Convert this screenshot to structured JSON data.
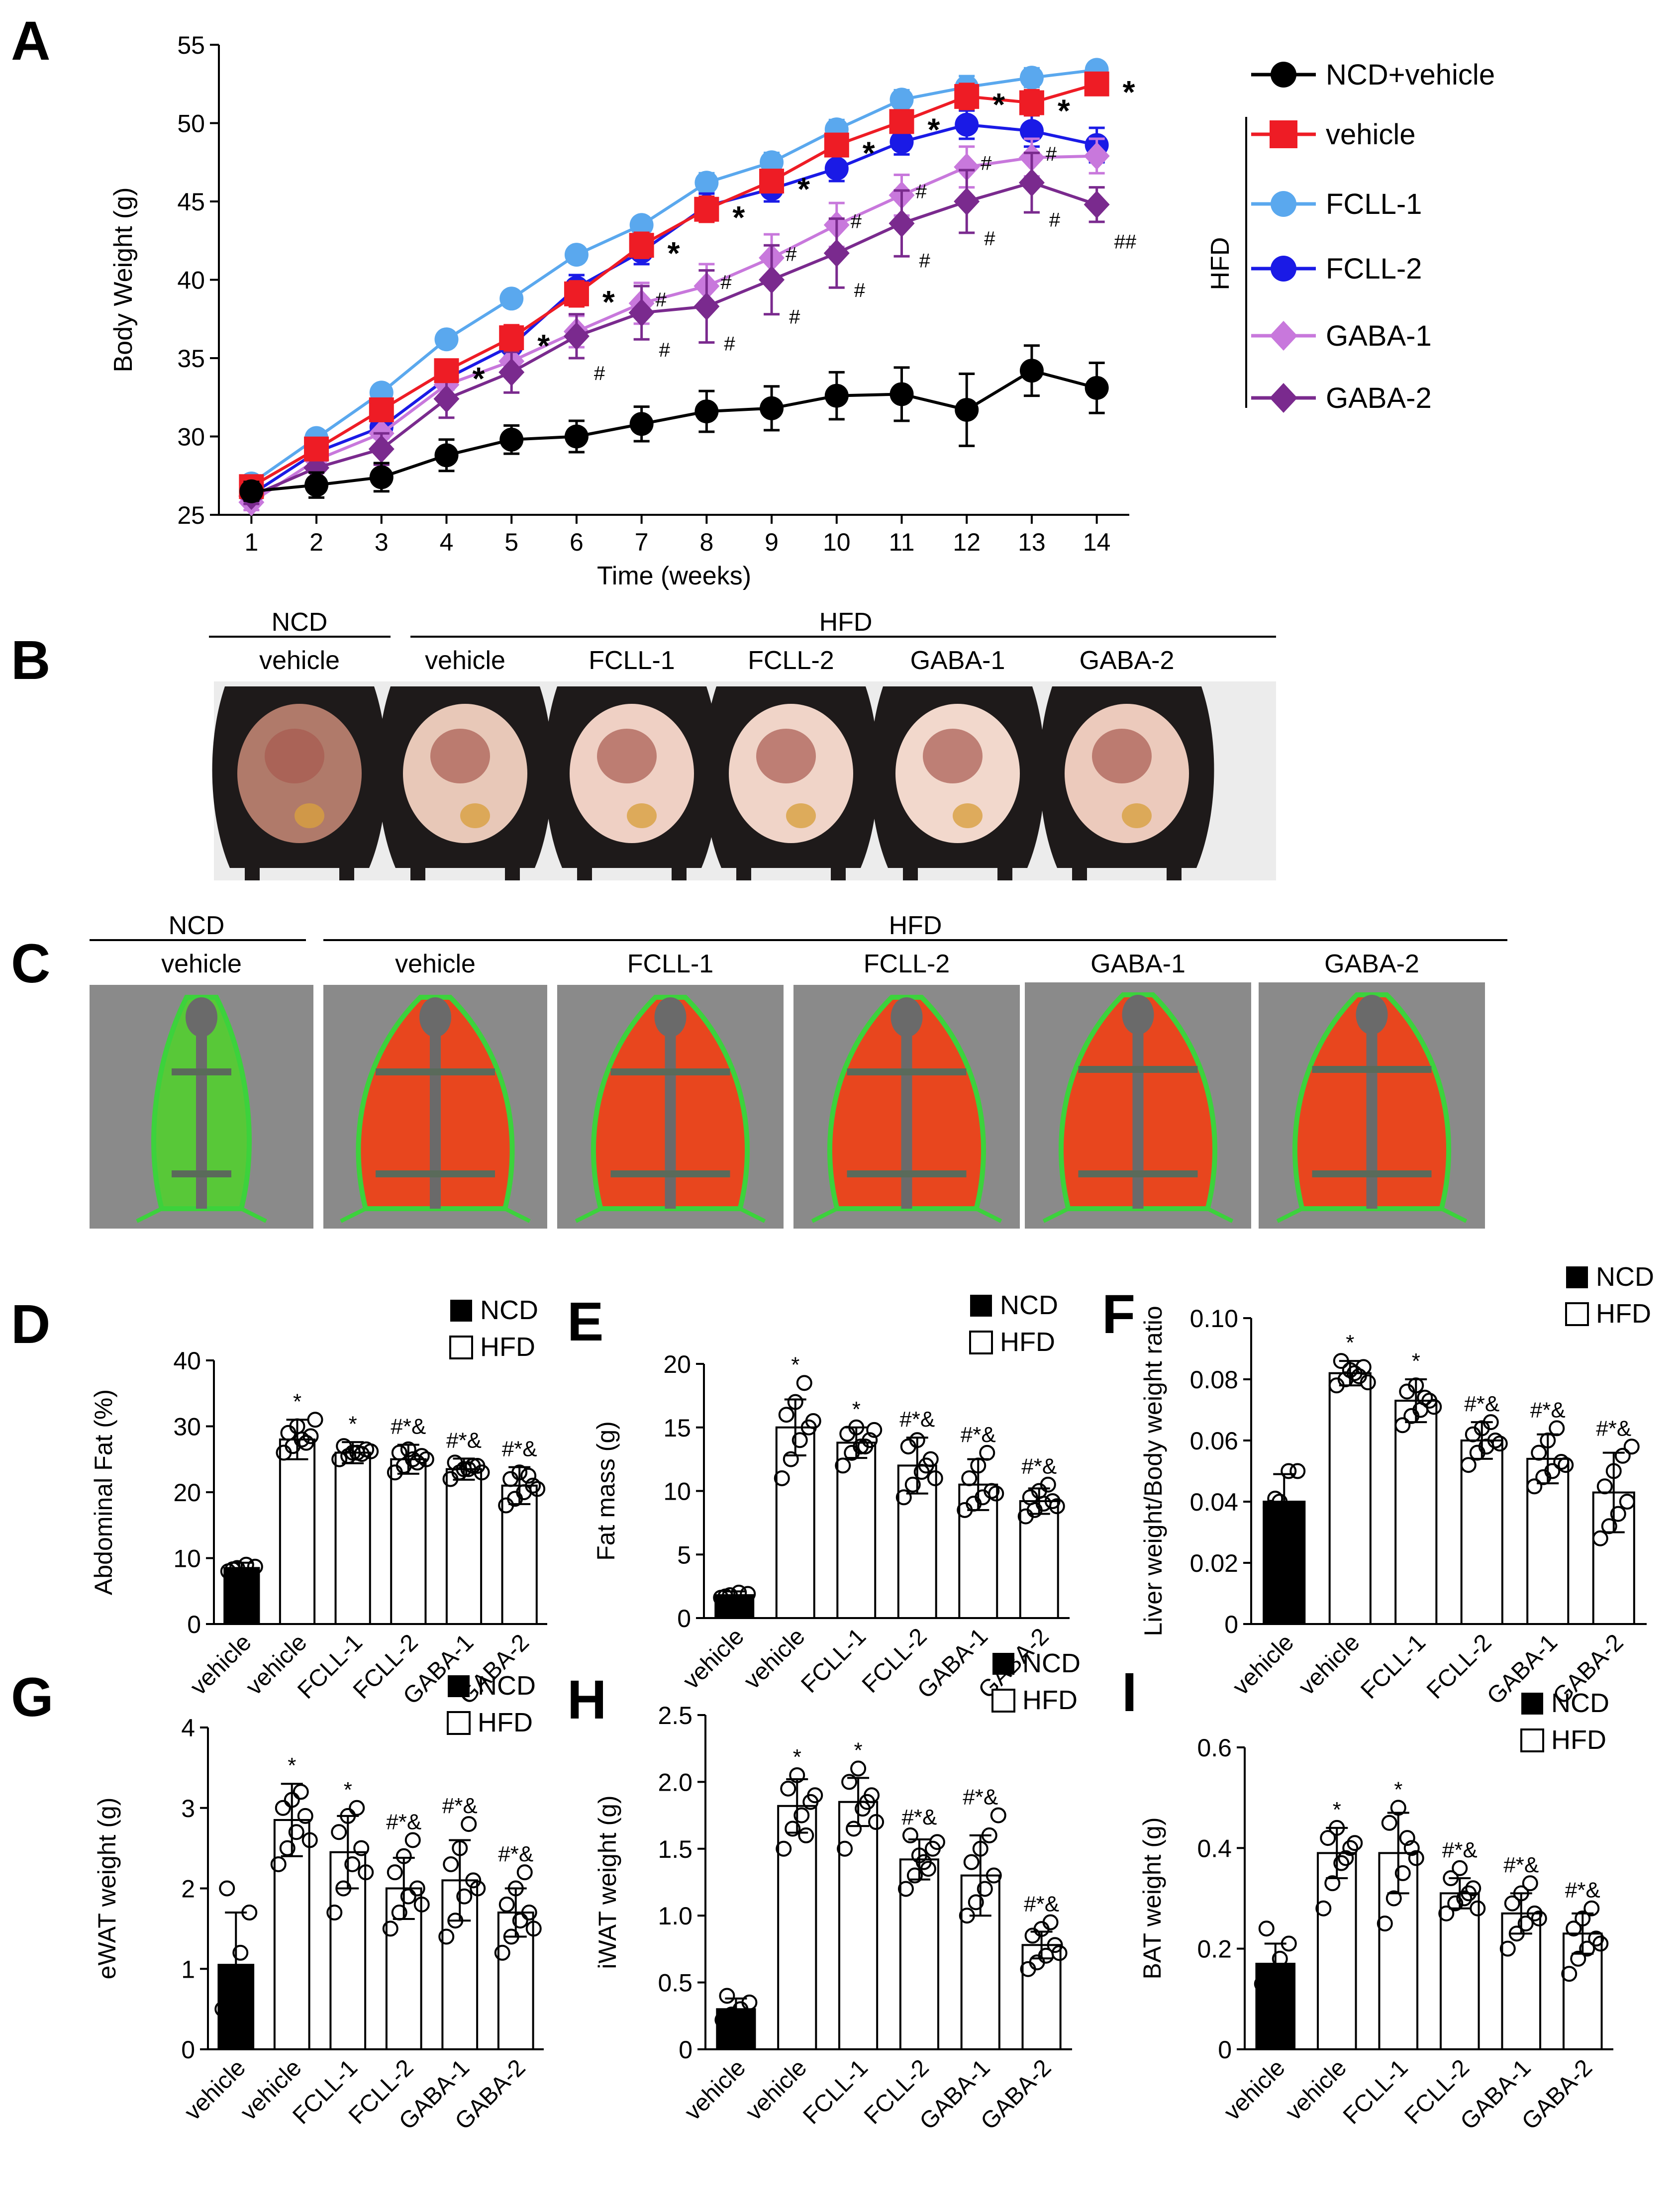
{
  "panel_letters": {
    "A": "A",
    "B": "B",
    "C": "C",
    "D": "D",
    "E": "E",
    "F": "F",
    "G": "G",
    "H": "H",
    "I": "I"
  },
  "colors": {
    "ncd": "#000000",
    "vehicle": "#ee1c25",
    "fcll1": "#5aa8ee",
    "fcll2": "#1a1ae6",
    "gaba1": "#c878dc",
    "gaba2": "#7a2a8e",
    "fat_red": "#e8461e",
    "lean_green": "#3cd23c",
    "scan_bg": "#8a8a8a"
  },
  "panel_B": {
    "group_ncd": "NCD",
    "group_hfd": "HFD",
    "labels": [
      "vehicle",
      "vehicle",
      "FCLL-1",
      "FCLL-2",
      "GABA-1",
      "GABA-2"
    ]
  },
  "panel_C": {
    "group_ncd": "NCD",
    "group_hfd": "HFD",
    "labels": [
      "vehicle",
      "vehicle",
      "FCLL-1",
      "FCLL-2",
      "GABA-1",
      "GABA-2"
    ]
  },
  "chart_data": [
    {
      "id": "A",
      "type": "line",
      "title": "",
      "xlabel": "Time (weeks)",
      "ylabel": "Body Weight (g)",
      "x": [
        1,
        2,
        3,
        4,
        5,
        6,
        7,
        8,
        9,
        10,
        11,
        12,
        13,
        14
      ],
      "xlim": [
        0.5,
        14.5
      ],
      "ylim": [
        25,
        55
      ],
      "yticks": [
        25,
        30,
        35,
        40,
        45,
        50,
        55
      ],
      "legend": {
        "placement": "right",
        "group_label": "HFD",
        "entries": [
          "NCD+vehicle",
          "vehicle",
          "FCLL-1",
          "FCLL-2",
          "GABA-1",
          "GABA-2"
        ]
      },
      "series": [
        {
          "name": "NCD+vehicle",
          "color": "#000000",
          "marker": "circle",
          "values": [
            26.5,
            26.9,
            27.4,
            28.8,
            29.8,
            30.0,
            30.8,
            31.6,
            31.8,
            32.6,
            32.7,
            31.7,
            34.2,
            33.1
          ],
          "err": [
            0.6,
            0.8,
            0.9,
            1.0,
            0.9,
            1.0,
            1.1,
            1.3,
            1.4,
            1.5,
            1.7,
            2.3,
            1.6,
            1.6
          ]
        },
        {
          "name": "vehicle",
          "color": "#ee1c25",
          "marker": "square",
          "values": [
            26.8,
            29.2,
            31.7,
            34.2,
            36.3,
            39.1,
            42.2,
            44.5,
            46.3,
            48.6,
            50.1,
            51.7,
            51.3,
            52.5
          ],
          "err": [
            0.4,
            0.6,
            0.7,
            0.7,
            0.8,
            0.8,
            0.8,
            0.8,
            0.7,
            0.7,
            0.7,
            0.8,
            0.8,
            0.6
          ]
        },
        {
          "name": "FCLL-1",
          "color": "#5aa8ee",
          "marker": "circle",
          "values": [
            27.0,
            29.9,
            32.8,
            36.2,
            38.8,
            41.6,
            43.5,
            46.2,
            47.5,
            49.6,
            51.5,
            52.3,
            52.9,
            53.4
          ],
          "err": [
            0.3,
            0.5,
            0.5,
            0.5,
            0.5,
            0.5,
            0.5,
            0.6,
            0.6,
            0.6,
            0.6,
            0.7,
            0.6,
            0.5
          ]
        },
        {
          "name": "FCLL-2",
          "color": "#1a1ae6",
          "marker": "circle",
          "values": [
            26.3,
            29.0,
            30.6,
            33.7,
            35.8,
            39.5,
            41.8,
            44.7,
            45.8,
            47.1,
            48.8,
            49.9,
            49.5,
            48.6
          ],
          "err": [
            0.4,
            0.6,
            0.7,
            0.7,
            0.7,
            0.8,
            0.8,
            0.8,
            0.8,
            0.8,
            0.8,
            0.9,
            1.0,
            1.1
          ]
        },
        {
          "name": "GABA-1",
          "color": "#c878dc",
          "marker": "diamond",
          "values": [
            25.8,
            28.5,
            30.2,
            33.3,
            34.8,
            36.7,
            38.5,
            39.6,
            41.4,
            43.5,
            45.4,
            47.2,
            47.8,
            47.9
          ],
          "err": [
            0.5,
            0.7,
            0.8,
            0.8,
            0.9,
            1.0,
            1.3,
            1.4,
            1.5,
            1.4,
            1.3,
            1.3,
            1.2,
            1.1
          ]
        },
        {
          "name": "GABA-2",
          "color": "#7a2a8e",
          "marker": "diamond",
          "values": [
            26.2,
            28.0,
            29.2,
            32.4,
            34.1,
            36.4,
            37.9,
            38.3,
            40.0,
            41.7,
            43.6,
            45.0,
            46.2,
            44.8
          ],
          "err": [
            0.5,
            0.8,
            1.0,
            1.2,
            1.3,
            1.4,
            1.7,
            2.3,
            2.2,
            2.2,
            2.1,
            2.0,
            1.9,
            1.1
          ]
        }
      ],
      "annotations": {
        "stars": "*",
        "hashes": "#",
        "double_hash": "##"
      }
    },
    {
      "id": "D",
      "type": "bar",
      "ylabel": "Abdominal Fat (%)",
      "ylim": [
        0,
        40
      ],
      "yticks": [
        0,
        10,
        20,
        30,
        40
      ],
      "categories": [
        "vehicle",
        "vehicle",
        "FCLL-1",
        "FCLL-2",
        "GABA-1",
        "GABA-2"
      ],
      "groups": [
        "NCD",
        "HFD",
        "HFD",
        "HFD",
        "HFD",
        "HFD"
      ],
      "legend": [
        "NCD",
        "HFD"
      ],
      "values": [
        8.5,
        28.0,
        26.0,
        25.0,
        23.5,
        21.0
      ],
      "err": [
        0.8,
        3.0,
        1.6,
        2.2,
        1.6,
        2.8
      ],
      "sig": [
        "",
        "*",
        "*",
        "#*&",
        "#*&",
        "#*&"
      ],
      "points": [
        [
          8.0,
          8.5,
          9.0,
          8.7,
          8.3
        ],
        [
          26,
          27,
          28,
          28.5,
          29,
          30,
          27.5,
          31
        ],
        [
          25,
          25.5,
          26,
          26.5,
          27,
          26,
          25.8,
          26.2
        ],
        [
          23,
          24,
          25,
          25.5,
          26,
          26.5,
          24.5,
          25
        ],
        [
          22,
          23,
          23.5,
          24,
          24.5,
          23.5,
          24,
          23
        ],
        [
          18,
          19,
          20,
          21,
          22,
          23,
          22.5,
          20.5
        ]
      ]
    },
    {
      "id": "E",
      "type": "bar",
      "ylabel": "Fat mass (g)",
      "ylim": [
        0,
        20
      ],
      "yticks": [
        0,
        5,
        10,
        15,
        20
      ],
      "categories": [
        "vehicle",
        "vehicle",
        "FCLL-1",
        "FCLL-2",
        "GABA-1",
        "GABA-2"
      ],
      "groups": [
        "NCD",
        "HFD",
        "HFD",
        "HFD",
        "HFD",
        "HFD"
      ],
      "legend": [
        "NCD",
        "HFD"
      ],
      "values": [
        1.8,
        15.0,
        13.8,
        12.0,
        10.5,
        9.2
      ],
      "err": [
        0.3,
        2.2,
        1.2,
        2.2,
        2.0,
        1.0
      ],
      "sig": [
        "",
        "*",
        "*",
        "#*&",
        "#*&",
        "#*&"
      ],
      "points": [
        [
          1.6,
          1.8,
          2.0,
          1.9,
          1.7
        ],
        [
          11,
          12.5,
          14,
          15,
          16,
          17,
          18.5,
          15.5
        ],
        [
          12,
          13,
          13.5,
          14,
          14.5,
          15,
          13.5,
          14.8
        ],
        [
          9.5,
          10.5,
          11.5,
          12.5,
          13.5,
          14,
          12,
          11
        ],
        [
          8.5,
          9,
          9.5,
          10,
          11,
          12,
          13,
          9.8
        ],
        [
          8,
          8.5,
          9,
          9.2,
          9.5,
          10,
          10.5,
          8.8
        ]
      ]
    },
    {
      "id": "F",
      "type": "bar",
      "ylabel": "Liver weight/Body weight ratio",
      "ylim": [
        0,
        0.1
      ],
      "yticks": [
        0,
        0.02,
        0.04,
        0.06,
        0.08,
        0.1
      ],
      "categories": [
        "vehicle",
        "vehicle",
        "FCLL-1",
        "FCLL-2",
        "GABA-1",
        "GABA-2"
      ],
      "groups": [
        "NCD",
        "HFD",
        "HFD",
        "HFD",
        "HFD",
        "HFD"
      ],
      "legend": [
        "NCD",
        "HFD"
      ],
      "values": [
        0.04,
        0.082,
        0.073,
        0.06,
        0.054,
        0.043
      ],
      "err": [
        0.009,
        0.004,
        0.007,
        0.006,
        0.008,
        0.013
      ],
      "sig": [
        "",
        "*",
        "*",
        "#*&",
        "#*&",
        "#*&"
      ],
      "points": [
        [
          0.038,
          0.04,
          0.05,
          0.05,
          0.041
        ],
        [
          0.078,
          0.08,
          0.082,
          0.084,
          0.086,
          0.083,
          0.081,
          0.079
        ],
        [
          0.065,
          0.068,
          0.07,
          0.073,
          0.076,
          0.078,
          0.074,
          0.071
        ],
        [
          0.052,
          0.056,
          0.058,
          0.06,
          0.062,
          0.064,
          0.066,
          0.059
        ],
        [
          0.045,
          0.048,
          0.05,
          0.053,
          0.056,
          0.06,
          0.064,
          0.052
        ],
        [
          0.028,
          0.032,
          0.036,
          0.04,
          0.045,
          0.05,
          0.055,
          0.058
        ]
      ]
    },
    {
      "id": "G",
      "type": "bar",
      "ylabel": "eWAT weight (g)",
      "ylim": [
        0,
        4
      ],
      "yticks": [
        0,
        1,
        2,
        3,
        4
      ],
      "categories": [
        "vehicle",
        "vehicle",
        "FCLL-1",
        "FCLL-2",
        "GABA-1",
        "GABA-2"
      ],
      "groups": [
        "NCD",
        "HFD",
        "HFD",
        "HFD",
        "HFD",
        "HFD"
      ],
      "legend": [
        "NCD",
        "HFD"
      ],
      "values": [
        1.05,
        2.85,
        2.45,
        2.0,
        2.1,
        1.7
      ],
      "err": [
        0.65,
        0.45,
        0.45,
        0.38,
        0.5,
        0.3
      ],
      "sig": [
        "",
        "*",
        "*",
        "#*&",
        "#*&",
        "#*&"
      ],
      "points": [
        [
          0.5,
          0.8,
          1.2,
          1.7,
          2.0
        ],
        [
          2.3,
          2.5,
          2.7,
          2.9,
          3.0,
          3.1,
          3.2,
          2.6
        ],
        [
          1.7,
          2.0,
          2.3,
          2.5,
          2.7,
          2.9,
          3.0,
          2.2
        ],
        [
          1.5,
          1.7,
          1.9,
          2.0,
          2.2,
          2.4,
          2.6,
          1.8
        ],
        [
          1.4,
          1.6,
          1.9,
          2.1,
          2.3,
          2.5,
          2.8,
          2.0
        ],
        [
          1.2,
          1.4,
          1.6,
          1.7,
          1.8,
          2.0,
          2.2,
          1.5
        ]
      ]
    },
    {
      "id": "H",
      "type": "bar",
      "ylabel": "iWAT weight (g)",
      "ylim": [
        0,
        2.5
      ],
      "yticks": [
        0,
        0.5,
        1.0,
        1.5,
        2.0,
        2.5
      ],
      "categories": [
        "vehicle",
        "vehicle",
        "FCLL-1",
        "FCLL-2",
        "GABA-1",
        "GABA-2"
      ],
      "groups": [
        "NCD",
        "HFD",
        "HFD",
        "HFD",
        "HFD",
        "HFD"
      ],
      "legend": [
        "NCD",
        "HFD"
      ],
      "values": [
        0.3,
        1.82,
        1.85,
        1.42,
        1.3,
        0.78
      ],
      "err": [
        0.08,
        0.2,
        0.18,
        0.15,
        0.3,
        0.1
      ],
      "sig": [
        "",
        "*",
        "*",
        "#*&",
        "#*&",
        "#*&"
      ],
      "points": [
        [
          0.22,
          0.26,
          0.3,
          0.35,
          0.4
        ],
        [
          1.5,
          1.65,
          1.75,
          1.85,
          1.95,
          2.05,
          1.6,
          1.9
        ],
        [
          1.5,
          1.65,
          1.8,
          1.9,
          2.0,
          2.1,
          1.85,
          1.7
        ],
        [
          1.2,
          1.3,
          1.4,
          1.5,
          1.6,
          1.45,
          1.35,
          1.55
        ],
        [
          1.0,
          1.1,
          1.2,
          1.3,
          1.4,
          1.5,
          1.6,
          1.75
        ],
        [
          0.6,
          0.65,
          0.7,
          0.78,
          0.85,
          0.9,
          0.95,
          0.72
        ]
      ]
    },
    {
      "id": "I",
      "type": "bar",
      "ylabel": "BAT weight (g)",
      "ylim": [
        0,
        0.6
      ],
      "yticks": [
        0,
        0.2,
        0.4,
        0.6
      ],
      "categories": [
        "vehicle",
        "vehicle",
        "FCLL-1",
        "FCLL-2",
        "GABA-1",
        "GABA-2"
      ],
      "groups": [
        "NCD",
        "HFD",
        "HFD",
        "HFD",
        "HFD",
        "HFD"
      ],
      "legend": [
        "NCD",
        "HFD"
      ],
      "values": [
        0.17,
        0.39,
        0.39,
        0.31,
        0.27,
        0.23
      ],
      "err": [
        0.04,
        0.05,
        0.08,
        0.03,
        0.04,
        0.04
      ],
      "sig": [
        "",
        "*",
        "*",
        "#*&",
        "#*&",
        "#*&"
      ],
      "points": [
        [
          0.13,
          0.15,
          0.18,
          0.21,
          0.24
        ],
        [
          0.28,
          0.33,
          0.37,
          0.4,
          0.42,
          0.44,
          0.38,
          0.41
        ],
        [
          0.25,
          0.3,
          0.35,
          0.4,
          0.45,
          0.48,
          0.42,
          0.38
        ],
        [
          0.27,
          0.29,
          0.3,
          0.32,
          0.34,
          0.36,
          0.31,
          0.28
        ],
        [
          0.2,
          0.23,
          0.25,
          0.27,
          0.29,
          0.31,
          0.33,
          0.26
        ],
        [
          0.15,
          0.18,
          0.2,
          0.22,
          0.24,
          0.26,
          0.28,
          0.21
        ]
      ]
    }
  ]
}
